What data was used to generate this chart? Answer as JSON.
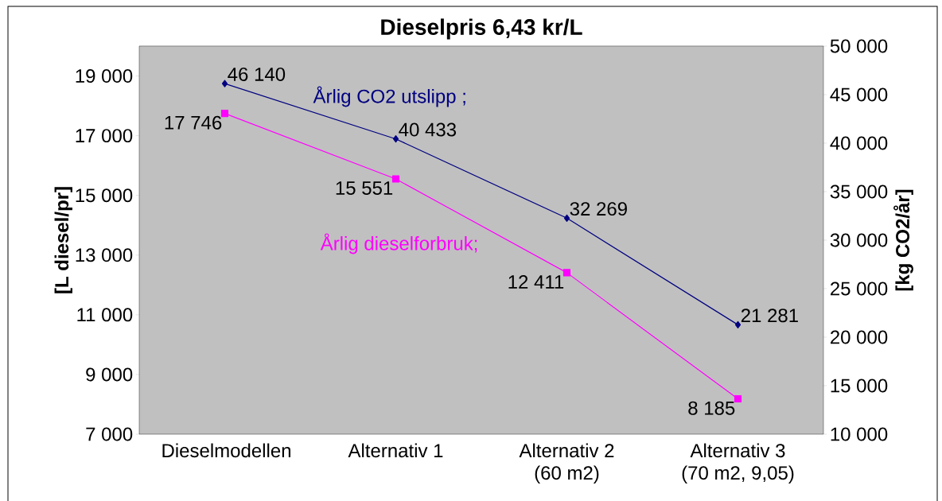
{
  "chart_data": {
    "type": "line",
    "title": "Dieselpris 6,43 kr/L",
    "ylabel": "[L diesel/pr]",
    "y2label": "[kg CO2/år]",
    "categories": [
      "Dieselmodellen",
      "Alternativ 1",
      "Alternativ 2 (60 m2)",
      "Alternativ 3 (70 m2, 9,05)"
    ],
    "series": [
      {
        "name": "Årlig CO2 utslipp ;",
        "color": "#000080",
        "axis": "y2",
        "marker": "diamond",
        "values": [
          46140,
          40433,
          32269,
          21281
        ],
        "value_labels": [
          "46 140",
          "40 433",
          "32 269",
          "21 281"
        ]
      },
      {
        "name": "Årlig dieselforbruk;",
        "color": "#ff00ff",
        "marker": "square",
        "values": [
          17746,
          15551,
          12411,
          8185
        ],
        "value_labels": [
          "17 746",
          "15 551",
          "12 411",
          "8 185"
        ]
      }
    ],
    "ylim": [
      7000,
      20000
    ],
    "yticks": [
      {
        "value": 7000,
        "label": "7 000"
      },
      {
        "value": 9000,
        "label": "9 000"
      },
      {
        "value": 11000,
        "label": "11 000"
      },
      {
        "value": 13000,
        "label": "13 000"
      },
      {
        "value": 15000,
        "label": "15 000"
      },
      {
        "value": 17000,
        "label": "17 000"
      },
      {
        "value": 19000,
        "label": "19 000"
      }
    ],
    "y2lim": [
      10000,
      50000
    ],
    "y2ticks": [
      {
        "value": 10000,
        "label": "10 000"
      },
      {
        "value": 15000,
        "label": "15 000"
      },
      {
        "value": 20000,
        "label": "20 000"
      },
      {
        "value": 25000,
        "label": "25 000"
      },
      {
        "value": 30000,
        "label": "30 000"
      },
      {
        "value": 35000,
        "label": "35 000"
      },
      {
        "value": 40000,
        "label": "40 000"
      },
      {
        "value": 45000,
        "label": "45 000"
      },
      {
        "value": 50000,
        "label": "50 000"
      }
    ],
    "line_style": "solid"
  }
}
